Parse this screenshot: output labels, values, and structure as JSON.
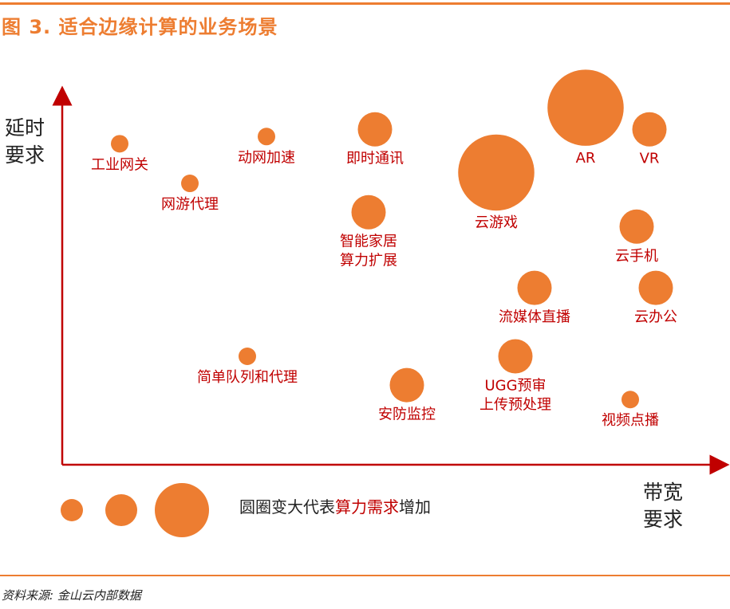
{
  "title": "图 3. 适合边缘计算的业务场景",
  "source": "资料来源: 金山云内部数据",
  "colors": {
    "accent": "#ED7D31",
    "label": "#C00000",
    "axis": "#C00000",
    "text": "#222222"
  },
  "legend": {
    "prefix": "圆圈变大代表",
    "highlight": "算力需求",
    "suffix": "增加",
    "sizes": [
      1,
      2,
      3
    ]
  },
  "chart_data": {
    "type": "bubble",
    "title": "适合边缘计算的业务场景",
    "ylabel": [
      "延时",
      "要求"
    ],
    "xlabel": [
      "带宽",
      "要求"
    ],
    "xlim": [
      0,
      10
    ],
    "ylim": [
      0,
      10
    ],
    "size_meaning": "算力需求",
    "points": [
      {
        "label": [
          "工业网关"
        ],
        "x": 0.9,
        "y": 8.4,
        "size": 1
      },
      {
        "label": [
          "动网加速"
        ],
        "x": 3.2,
        "y": 8.6,
        "size": 1
      },
      {
        "label": [
          "网游代理"
        ],
        "x": 2.0,
        "y": 7.3,
        "size": 1
      },
      {
        "label": [
          "即时通讯"
        ],
        "x": 4.9,
        "y": 8.8,
        "size": 2
      },
      {
        "label": [
          "智能家居",
          "算力扩展"
        ],
        "x": 4.8,
        "y": 6.5,
        "size": 2
      },
      {
        "label": [
          "AR"
        ],
        "x": 8.2,
        "y": 9.4,
        "size": 4.5
      },
      {
        "label": [
          "VR"
        ],
        "x": 9.2,
        "y": 8.8,
        "size": 2
      },
      {
        "label": [
          "云游戏"
        ],
        "x": 6.8,
        "y": 7.6,
        "size": 4.5
      },
      {
        "label": [
          "云手机"
        ],
        "x": 9.0,
        "y": 6.1,
        "size": 2
      },
      {
        "label": [
          "流媒体直播"
        ],
        "x": 7.4,
        "y": 4.4,
        "size": 2
      },
      {
        "label": [
          "云办公"
        ],
        "x": 9.3,
        "y": 4.4,
        "size": 2
      },
      {
        "label": [
          "简单队列和代理"
        ],
        "x": 2.9,
        "y": 2.5,
        "size": 1
      },
      {
        "label": [
          "安防监控"
        ],
        "x": 5.4,
        "y": 1.7,
        "size": 2
      },
      {
        "label": [
          "UGG预审",
          "上传预处理"
        ],
        "x": 7.1,
        "y": 2.5,
        "size": 2
      },
      {
        "label": [
          "视频点播"
        ],
        "x": 8.9,
        "y": 1.3,
        "size": 1
      }
    ]
  }
}
